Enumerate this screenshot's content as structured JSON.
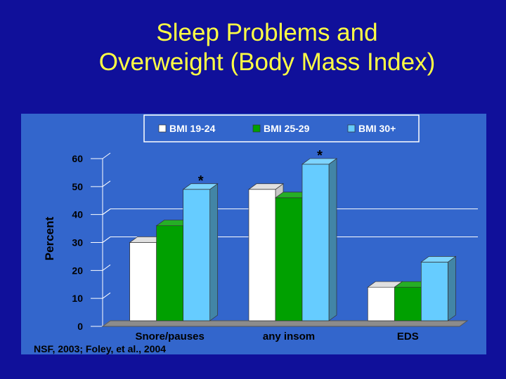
{
  "slide": {
    "title_line1": "Sleep Problems and",
    "title_line2": "Overweight (Body Mass Index)",
    "source": "NSF, 2003; Foley, et al., 2004"
  },
  "chart_data": {
    "type": "bar",
    "categories": [
      "Snore/pauses",
      "any insom",
      "EDS"
    ],
    "series": [
      {
        "name": "BMI 19-24",
        "color": "#ffffff",
        "values": [
          28,
          47,
          12
        ]
      },
      {
        "name": "BMI 25-29",
        "color": "#00a000",
        "values": [
          34,
          44,
          12
        ]
      },
      {
        "name": "BMI 30+",
        "color": "#66ccff",
        "values": [
          47,
          56,
          21
        ]
      }
    ],
    "significance_marks": [
      {
        "category": "Snore/pauses",
        "series": "BMI 30+",
        "label": "*"
      },
      {
        "category": "any insom",
        "series": "BMI 30+",
        "label": "*"
      }
    ],
    "ylabel": "Percent",
    "ylim": [
      0,
      60
    ],
    "yticks": [
      0,
      10,
      20,
      30,
      40,
      50,
      60
    ],
    "gridlines": [
      30,
      40
    ],
    "legend_position": "top",
    "style": "3d",
    "background_color": "#3366cc",
    "title_color": "#ffff44"
  }
}
